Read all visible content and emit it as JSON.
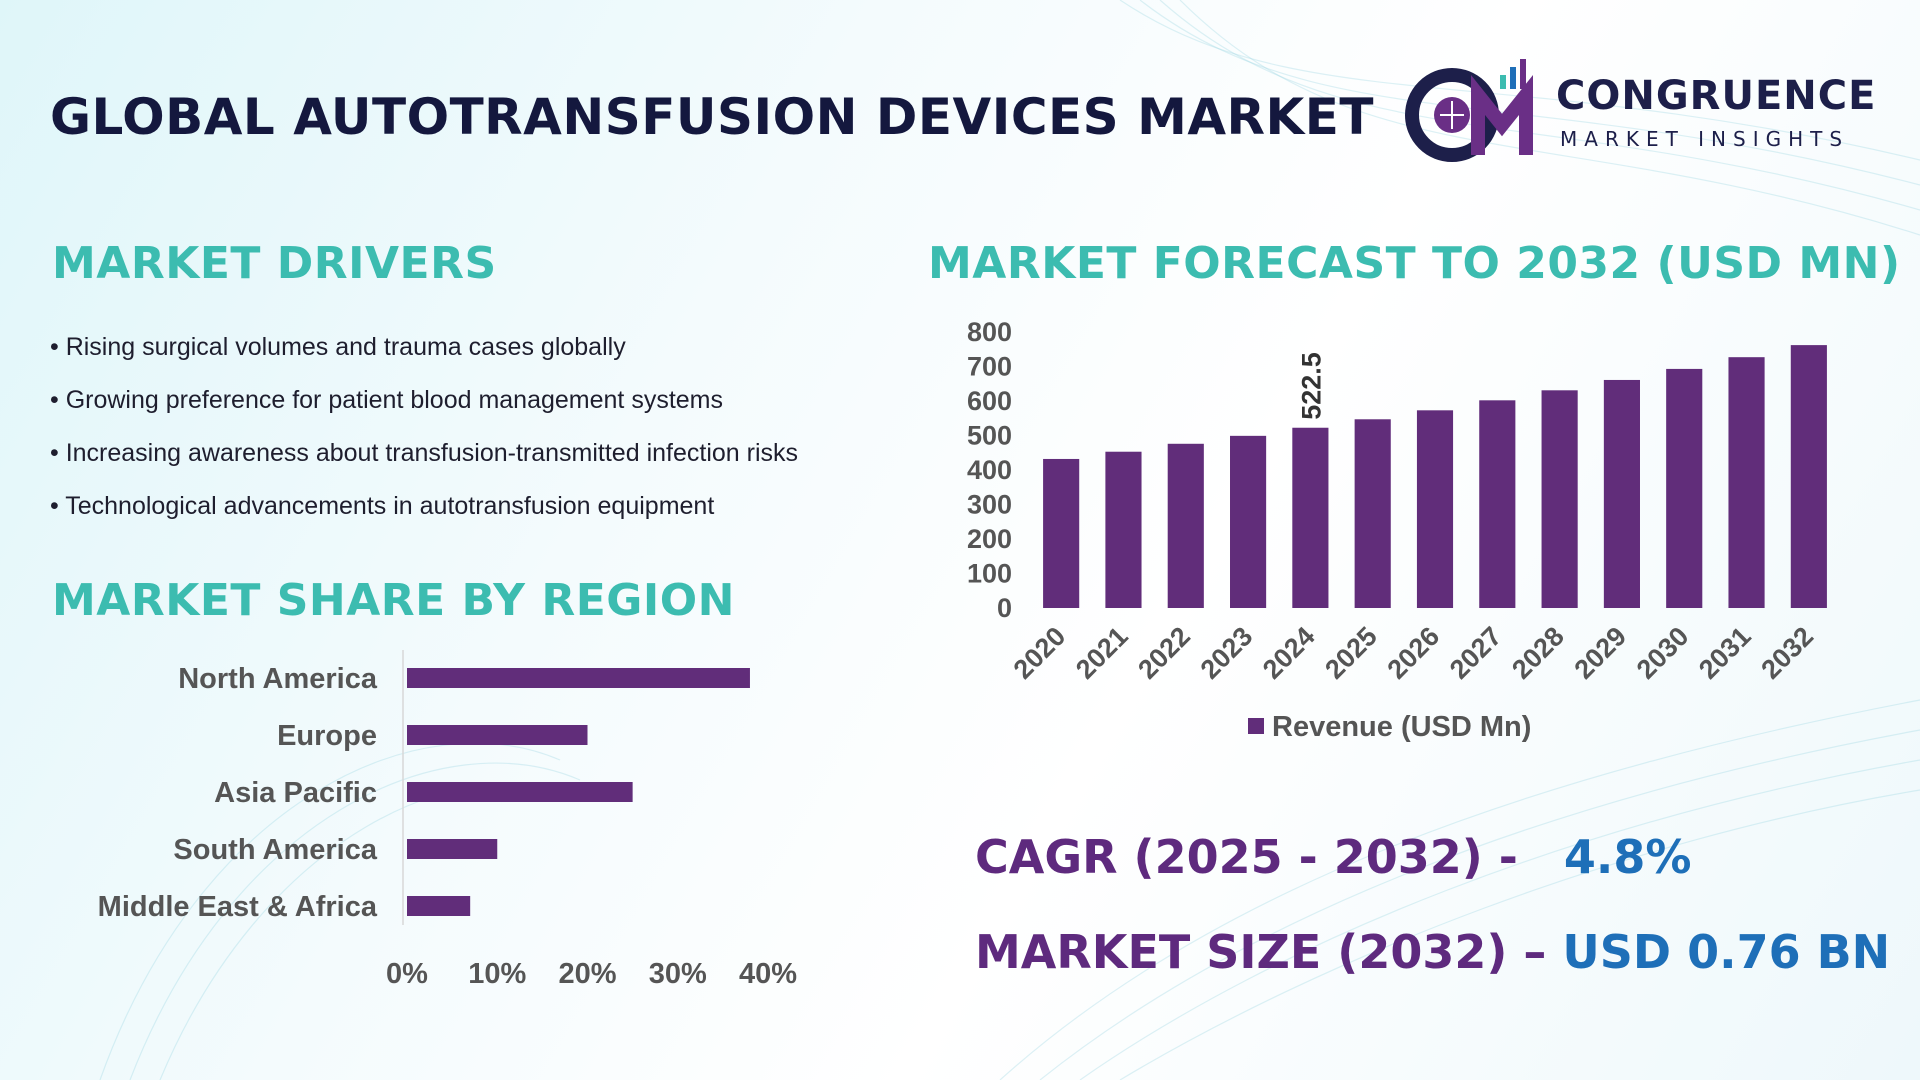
{
  "title": "GLOBAL AUTOTRANSFUSION DEVICES MARKET",
  "logo": {
    "line1": "CONGRUENCE",
    "line2": "MARKET INSIGHTS"
  },
  "drivers": {
    "heading": "MARKET DRIVERS",
    "items": [
      "Rising surgical volumes and trauma cases globally",
      "Growing preference for patient blood management systems",
      "Increasing awareness about transfusion-transmitted infection risks",
      "Technological advancements in autotransfusion equipment"
    ]
  },
  "region_heading": "MARKET SHARE BY REGION",
  "forecast_heading": "MARKET FORECAST TO 2032 (USD MN)",
  "cagr": {
    "label": "CAGR (2025 - 2032) -",
    "value": "4.8%"
  },
  "market_size": {
    "label": "MARKET SIZE (2032) –",
    "value": "USD 0.76 BN"
  },
  "colors": {
    "bar": "#612d7a",
    "teal": "#3cbcb0",
    "title": "#14183e",
    "value_blue": "#1e6fb8"
  },
  "chart_data": [
    {
      "type": "bar",
      "orientation": "vertical",
      "title": "MARKET FORECAST TO 2032 (USD MN)",
      "categories": [
        "2020",
        "2021",
        "2022",
        "2023",
        "2024",
        "2025",
        "2026",
        "2027",
        "2028",
        "2029",
        "2030",
        "2031",
        "2032"
      ],
      "series": [
        {
          "name": "Revenue (USD Mn)",
          "values": [
            432,
            453,
            476,
            499,
            522.5,
            547,
            573,
            602,
            631,
            661,
            693,
            727,
            762
          ]
        }
      ],
      "data_labels": {
        "2024": "522.5"
      },
      "yticks": [
        "0",
        "100",
        "200",
        "300",
        "400",
        "500",
        "600",
        "700",
        "800"
      ],
      "ylim": [
        0,
        800
      ],
      "legend": "bottom",
      "grid": false
    },
    {
      "type": "bar",
      "orientation": "horizontal",
      "title": "MARKET SHARE BY REGION",
      "categories": [
        "North America",
        "Europe",
        "Asia Pacific",
        "South America",
        "Middle East & Africa"
      ],
      "values": [
        0.38,
        0.2,
        0.25,
        0.1,
        0.07
      ],
      "xticks": [
        "0%",
        "10%",
        "20%",
        "30%",
        "40%"
      ],
      "xlim": [
        0,
        0.4
      ],
      "grid": false
    }
  ]
}
